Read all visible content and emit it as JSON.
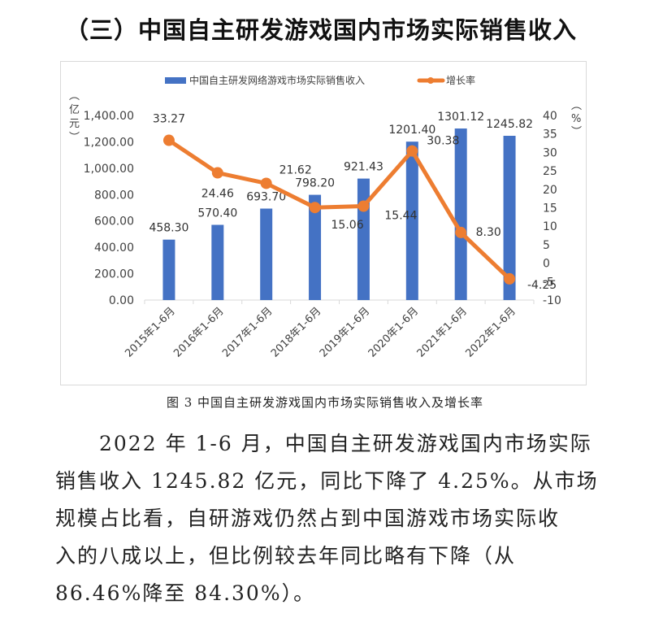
{
  "heading": "（三）中国自主研发游戏国内市场实际销售收入",
  "caption": "图 3 中国自主研发游戏国内市场实际销售收入及增长率",
  "paragraph": "2022 年 1-6 月，中国自主研发游戏国内市场实际销售收入 1245.82 亿元，同比下降了 4.25%。从市场规模占比看，自研游戏仍然占到中国游戏市场实际收入的八成以上，但比例较去年同比略有下降（从 86.46%降至 84.30%）。",
  "paragraph_lines": [
    "　　2022 年 1-6 月，中国自主研发游戏国内市场实际",
    "销售收入 1245.82 亿元，同比下降了 4.25%。从市场",
    "规模占比看，自研游戏仍然占到中国游戏市场实际收",
    "入的八成以上，但比例较去年同比略有下降（从",
    "86.46%降至 84.30%）。"
  ],
  "colors": {
    "bar": "#4472c4",
    "line": "#ed7d31",
    "axis": "#d9d9d9",
    "text": "#404040"
  },
  "chart_data": {
    "type": "bar",
    "title": "",
    "categories": [
      "2015年1-6月",
      "2016年1-6月",
      "2017年1-6月",
      "2018年1-6月",
      "2019年1-6月",
      "2020年1-6月",
      "2021年1-6月",
      "2022年1-6月"
    ],
    "series": [
      {
        "name": "中国自主研发网络游戏市场实际销售收入",
        "type": "bar",
        "axis": "left",
        "values": [
          458.3,
          570.4,
          693.7,
          798.2,
          921.43,
          1201.4,
          1301.12,
          1245.82
        ],
        "labels": [
          "458.30",
          "570.40",
          "693.70",
          "798.20",
          "921.43",
          "1201.40",
          "1301.12",
          "1245.82"
        ]
      },
      {
        "name": "增长率",
        "type": "line",
        "axis": "right",
        "values": [
          33.27,
          24.46,
          21.62,
          15.06,
          15.44,
          30.38,
          8.3,
          -4.25
        ],
        "labels": [
          "33.27",
          "24.46",
          "21.62",
          "15.06",
          "15.44",
          "30.38",
          "8.30",
          "-4.25"
        ]
      }
    ],
    "ylabel": "（亿元）",
    "ylabel_right": "（%）",
    "ylim": [
      0,
      1400
    ],
    "ylim_right": [
      -10,
      40
    ],
    "yticks": [
      "1,400.00",
      "1,200.00",
      "1,000.00",
      "800.00",
      "600.00",
      "400.00",
      "200.00",
      "0.00"
    ],
    "yticks_right": [
      "40",
      "35",
      "30",
      "25",
      "20",
      "15",
      "10",
      "5",
      "0",
      "-5",
      "-10"
    ],
    "legend_position": "top",
    "grid": false
  }
}
